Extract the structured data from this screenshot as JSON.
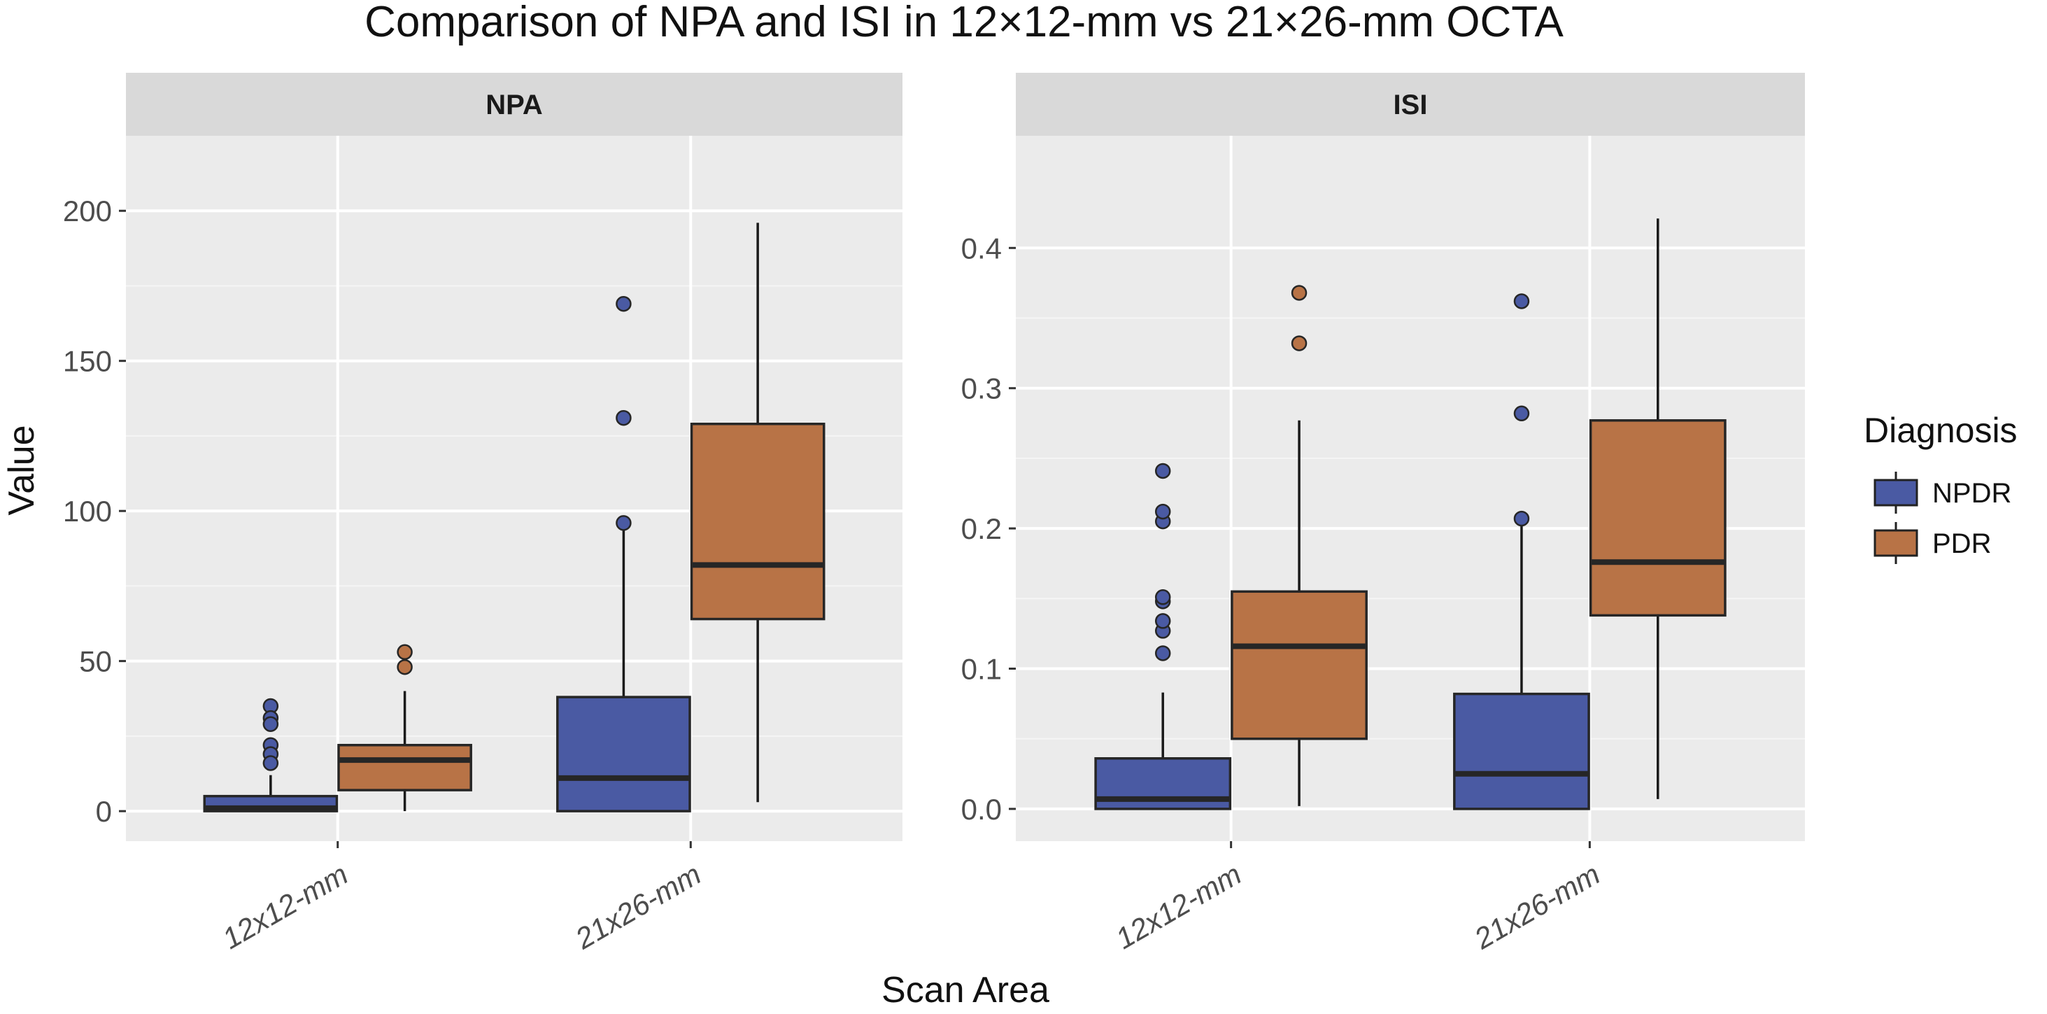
{
  "chart_data": {
    "title": "Comparison of NPA and ISI in 12×12-mm vs 21×26-mm OCTA",
    "xlabel": "Scan Area",
    "ylabel": "Value",
    "legend": {
      "title": "Diagnosis",
      "position": "right",
      "entries": [
        {
          "name": "NPDR",
          "color": "#4a5aa3"
        },
        {
          "name": "PDR",
          "color": "#b87346"
        }
      ]
    },
    "panels": [
      {
        "type": "box",
        "strip_label": "NPA",
        "categories": [
          "12x12-mm",
          "21x26-mm"
        ],
        "ylim": [
          -10,
          225
        ],
        "yticks": [
          0,
          50,
          100,
          150,
          200
        ],
        "ytick_labels": [
          "0",
          "50",
          "100",
          "150",
          "200"
        ],
        "series": [
          {
            "name": "NPDR",
            "boxes": [
              {
                "category": "12x12-mm",
                "min": 0,
                "q1": 0,
                "median": 1,
                "q3": 5,
                "max": 12,
                "outliers": [
                  35,
                  31,
                  29,
                  22,
                  19,
                  16
                ]
              },
              {
                "category": "21x26-mm",
                "min": 0,
                "q1": 0,
                "median": 11,
                "q3": 38,
                "max": 95,
                "outliers": [
                  96,
                  131,
                  169
                ]
              }
            ]
          },
          {
            "name": "PDR",
            "boxes": [
              {
                "category": "12x12-mm",
                "min": 0,
                "q1": 7,
                "median": 17,
                "q3": 22,
                "max": 40,
                "outliers": [
                  48,
                  53
                ]
              },
              {
                "category": "21x26-mm",
                "min": 3,
                "q1": 64,
                "median": 82,
                "q3": 129,
                "max": 196,
                "outliers": []
              }
            ]
          }
        ]
      },
      {
        "type": "box",
        "strip_label": "ISI",
        "categories": [
          "12x12-mm",
          "21x26-mm"
        ],
        "ylim": [
          -0.023,
          0.48
        ],
        "yticks": [
          0,
          0.1,
          0.2,
          0.3,
          0.4
        ],
        "ytick_labels": [
          "0.0",
          "0.1",
          "0.2",
          "0.3",
          "0.4"
        ],
        "series": [
          {
            "name": "NPDR",
            "boxes": [
              {
                "category": "12x12-mm",
                "min": 0,
                "q1": 0,
                "median": 0.007,
                "q3": 0.036,
                "max": 0.083,
                "outliers": [
                  0.111,
                  0.127,
                  0.134,
                  0.148,
                  0.151,
                  0.205,
                  0.212,
                  0.241
                ]
              },
              {
                "category": "21x26-mm",
                "min": 0,
                "q1": 0,
                "median": 0.025,
                "q3": 0.082,
                "max": 0.202,
                "outliers": [
                  0.207,
                  0.282,
                  0.362
                ]
              }
            ]
          },
          {
            "name": "PDR",
            "boxes": [
              {
                "category": "12x12-mm",
                "min": 0.002,
                "q1": 0.05,
                "median": 0.116,
                "q3": 0.155,
                "max": 0.277,
                "outliers": [
                  0.332,
                  0.368
                ]
              },
              {
                "category": "21x26-mm",
                "min": 0.007,
                "q1": 0.138,
                "median": 0.176,
                "q3": 0.277,
                "max": 0.421,
                "outliers": []
              }
            ]
          }
        ]
      }
    ]
  }
}
